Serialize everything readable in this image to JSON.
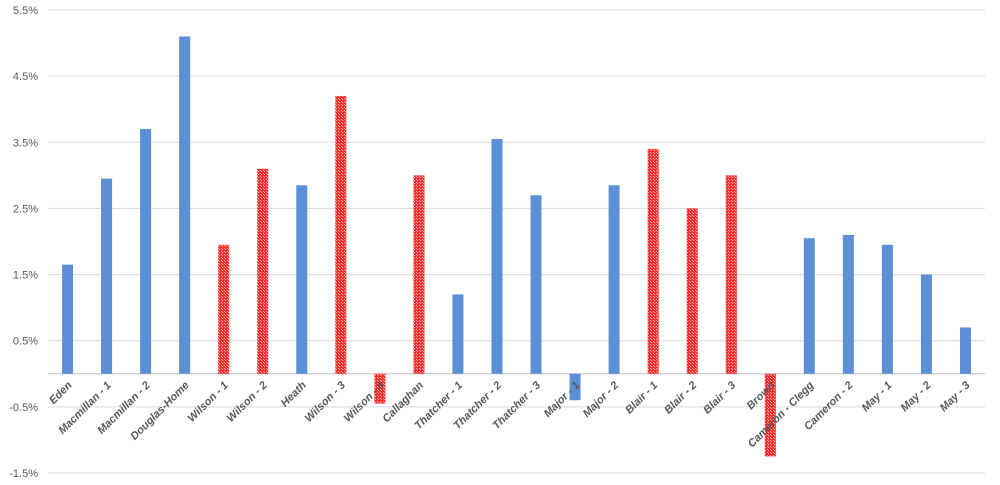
{
  "chart_data": {
    "type": "bar",
    "title": "",
    "xlabel": "",
    "ylabel": "",
    "ylim": [
      -1.5,
      5.5
    ],
    "y_ticks": [
      -1.5,
      -0.5,
      0.5,
      1.5,
      2.5,
      3.5,
      4.5,
      5.5
    ],
    "y_tick_labels": [
      "-1.5%",
      "-0.5%",
      "0.5%",
      "1.5%",
      "2.5%",
      "3.5%",
      "4.5%",
      "5.5%"
    ],
    "grid": true,
    "legend": "none",
    "categories": [
      "Eden",
      "Macmillan - 1",
      "Macmillan - 2",
      "Douglas-Home",
      "Wilson - 1",
      "Wilson - 2",
      "Heath",
      "Wilson - 3",
      "Wilson - 4",
      "Callaghan",
      "Thatcher - 1",
      "Thatcher - 2",
      "Thatcher - 3",
      "Major - 1",
      "Major - 2",
      "Blair - 1",
      "Blair - 2",
      "Blair - 3",
      "Brown",
      "Cameron - Clegg",
      "Cameron - 2",
      "May - 1",
      "May - 2",
      "May - 3"
    ],
    "values": [
      1.65,
      2.95,
      3.7,
      5.1,
      1.95,
      3.1,
      2.85,
      4.2,
      -0.45,
      3.0,
      1.2,
      3.55,
      2.7,
      -0.4,
      2.85,
      3.4,
      2.5,
      3.0,
      -1.25,
      2.05,
      2.1,
      1.95,
      1.5,
      0.7
    ],
    "bar_kind": [
      "blue",
      "blue",
      "blue",
      "blue",
      "red",
      "red",
      "blue",
      "red",
      "red",
      "red",
      "blue",
      "blue",
      "blue",
      "blue",
      "blue",
      "red",
      "red",
      "red",
      "red",
      "blue",
      "blue",
      "blue",
      "blue",
      "blue"
    ],
    "colors": {
      "blue": "#5b8fd6",
      "red": "#ff2a2a"
    }
  }
}
